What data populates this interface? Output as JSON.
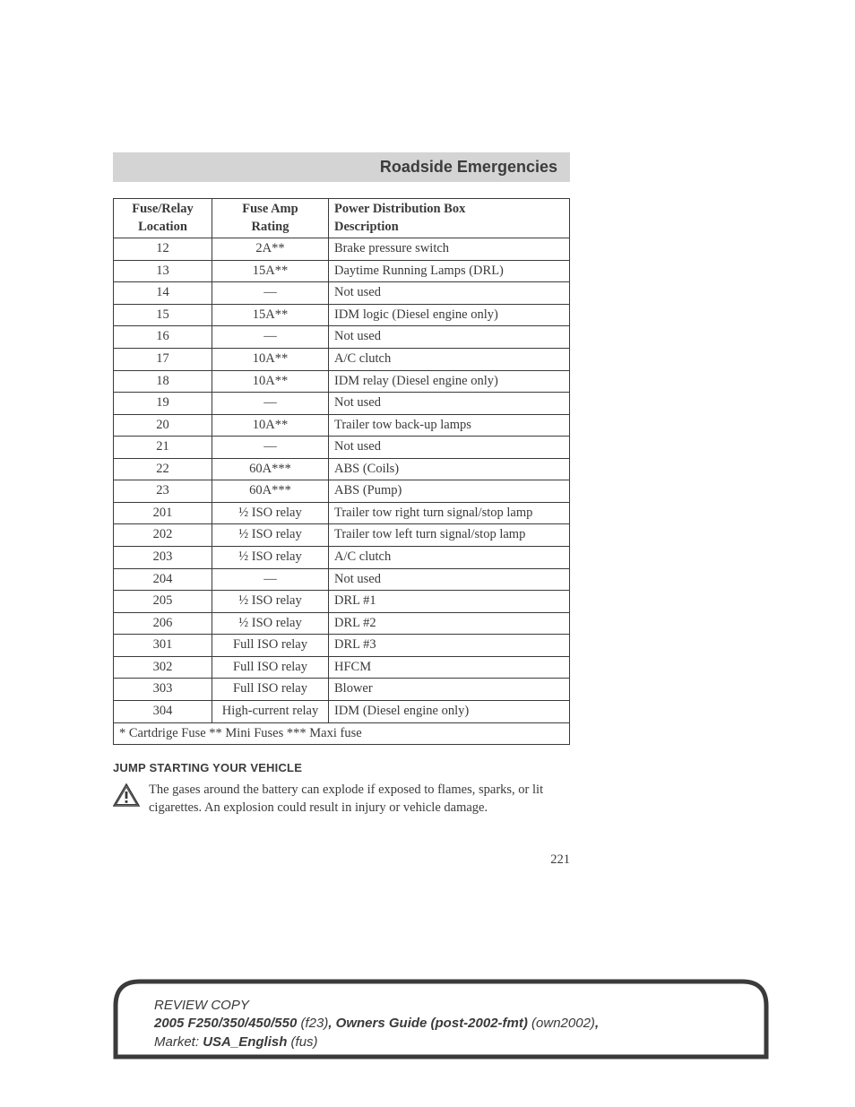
{
  "header": {
    "title": "Roadside Emergencies"
  },
  "table": {
    "columns": [
      {
        "line1": "Fuse/Relay",
        "line2": "Location"
      },
      {
        "line1": "Fuse Amp",
        "line2": "Rating"
      },
      {
        "line1": "Power Distribution Box",
        "line2": "Description"
      }
    ],
    "rows": [
      {
        "loc": "12",
        "amp": "2A**",
        "desc": "Brake pressure switch"
      },
      {
        "loc": "13",
        "amp": "15A**",
        "desc": "Daytime Running Lamps (DRL)"
      },
      {
        "loc": "14",
        "amp": "—",
        "desc": "Not used"
      },
      {
        "loc": "15",
        "amp": "15A**",
        "desc": "IDM logic (Diesel engine only)"
      },
      {
        "loc": "16",
        "amp": "—",
        "desc": "Not used"
      },
      {
        "loc": "17",
        "amp": "10A**",
        "desc": "A/C clutch"
      },
      {
        "loc": "18",
        "amp": "10A**",
        "desc": "IDM relay (Diesel engine only)"
      },
      {
        "loc": "19",
        "amp": "—",
        "desc": "Not used"
      },
      {
        "loc": "20",
        "amp": "10A**",
        "desc": "Trailer tow back-up lamps"
      },
      {
        "loc": "21",
        "amp": "—",
        "desc": "Not used"
      },
      {
        "loc": "22",
        "amp": "60A***",
        "desc": "ABS (Coils)"
      },
      {
        "loc": "23",
        "amp": "60A***",
        "desc": "ABS (Pump)"
      },
      {
        "loc": "201",
        "amp": "½ ISO relay",
        "desc": "Trailer tow right turn signal/stop lamp"
      },
      {
        "loc": "202",
        "amp": "½ ISO relay",
        "desc": "Trailer tow left turn signal/stop lamp"
      },
      {
        "loc": "203",
        "amp": "½ ISO relay",
        "desc": "A/C clutch"
      },
      {
        "loc": "204",
        "amp": "—",
        "desc": "Not used"
      },
      {
        "loc": "205",
        "amp": "½ ISO relay",
        "desc": "DRL #1"
      },
      {
        "loc": "206",
        "amp": "½ ISO relay",
        "desc": "DRL #2"
      },
      {
        "loc": "301",
        "amp": "Full ISO relay",
        "desc": "DRL #3"
      },
      {
        "loc": "302",
        "amp": "Full ISO relay",
        "desc": "HFCM"
      },
      {
        "loc": "303",
        "amp": "Full ISO relay",
        "desc": "Blower"
      },
      {
        "loc": "304",
        "amp": "High-current relay",
        "desc": "IDM (Diesel engine only)"
      }
    ],
    "footnote": "* Cartdrige Fuse ** Mini Fuses *** Maxi fuse"
  },
  "jump": {
    "heading": "JUMP STARTING YOUR VEHICLE",
    "warning": "The gases around the battery can explode if exposed to flames, sparks, or lit cigarettes. An explosion could result in injury or vehicle damage."
  },
  "page_number": "221",
  "footer": {
    "line1_a": "REVIEW COPY",
    "line2_a": "2005 F250/350/450/550 ",
    "line2_b": "(f23)",
    "line2_c": ", ",
    "line2_d": "Owners Guide (post-2002-fmt) ",
    "line2_e": "(own2002)",
    "line2_f": ",",
    "line3_a": "Market: ",
    "line3_b": "USA_English ",
    "line3_c": "(fus)"
  },
  "colors": {
    "header_bg": "#d4d4d4",
    "text": "#3a3a3a",
    "rule": "#3a3a3a"
  }
}
